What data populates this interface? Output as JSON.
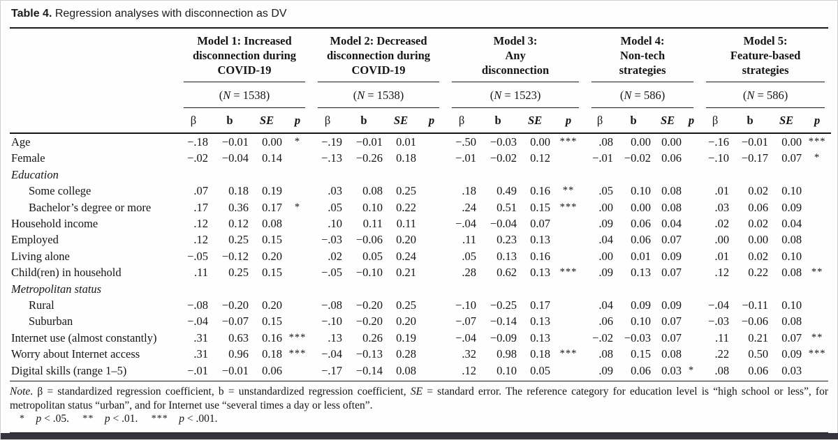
{
  "title": {
    "label": "Table 4.",
    "caption": " Regression analyses with disconnection as DV"
  },
  "col_headers": [
    "β",
    "b",
    "SE",
    "p"
  ],
  "models": [
    {
      "title": "Model 1: Increased\ndisconnection during\nCOVID-19",
      "n": [
        {
          "t": "(",
          "i": false
        },
        {
          "t": "N",
          "i": true
        },
        {
          "t": " = 1538)",
          "i": false
        }
      ]
    },
    {
      "title": "Model 2: Decreased\ndisconnection during\nCOVID-19",
      "n": [
        {
          "t": "(",
          "i": false
        },
        {
          "t": "N",
          "i": true
        },
        {
          "t": " = 1538)",
          "i": false
        }
      ]
    },
    {
      "title": "Model 3:\nAny\ndisconnection",
      "n": [
        {
          "t": "(",
          "i": false
        },
        {
          "t": "N",
          "i": true
        },
        {
          "t": " = 1523)",
          "i": false
        }
      ]
    },
    {
      "title": "Model 4:\nNon-tech\nstrategies",
      "n": [
        {
          "t": "(",
          "i": false
        },
        {
          "t": "N",
          "i": true
        },
        {
          "t": " = 586)",
          "i": false
        }
      ]
    },
    {
      "title": "Model 5:\nFeature-based\nstrategies",
      "n": [
        {
          "t": "(",
          "i": false
        },
        {
          "t": "N",
          "i": true
        },
        {
          "t": " = 586)",
          "i": false
        }
      ]
    }
  ],
  "rows": [
    {
      "label": "Age",
      "indent": false,
      "category": false,
      "cells": [
        [
          "−.18",
          "−0.01",
          "0.00",
          "*"
        ],
        [
          "−.19",
          "−0.01",
          "0.01",
          ""
        ],
        [
          "−.50",
          "−0.03",
          "0.00",
          "***"
        ],
        [
          ".08",
          "0.00",
          "0.00",
          ""
        ],
        [
          "−.16",
          "−0.01",
          "0.00",
          "***"
        ]
      ]
    },
    {
      "label": "Female",
      "indent": false,
      "category": false,
      "cells": [
        [
          "−.02",
          "−0.04",
          "0.14",
          ""
        ],
        [
          "−.13",
          "−0.26",
          "0.18",
          ""
        ],
        [
          "−.01",
          "−0.02",
          "0.12",
          ""
        ],
        [
          "−.01",
          "−0.02",
          "0.06",
          ""
        ],
        [
          "−.10",
          "−0.17",
          "0.07",
          "*"
        ]
      ]
    },
    {
      "label": "Education",
      "indent": false,
      "category": true,
      "cells": null
    },
    {
      "label": "Some college",
      "indent": true,
      "category": false,
      "cells": [
        [
          ".07",
          "0.18",
          "0.19",
          ""
        ],
        [
          ".03",
          "0.08",
          "0.25",
          ""
        ],
        [
          ".18",
          "0.49",
          "0.16",
          "**"
        ],
        [
          ".05",
          "0.10",
          "0.08",
          ""
        ],
        [
          ".01",
          "0.02",
          "0.10",
          ""
        ]
      ]
    },
    {
      "label": "Bachelor’s degree or more",
      "indent": true,
      "category": false,
      "cells": [
        [
          ".17",
          "0.36",
          "0.17",
          "*"
        ],
        [
          ".05",
          "0.10",
          "0.22",
          ""
        ],
        [
          ".24",
          "0.51",
          "0.15",
          "***"
        ],
        [
          ".00",
          "0.00",
          "0.08",
          ""
        ],
        [
          ".03",
          "0.06",
          "0.09",
          ""
        ]
      ]
    },
    {
      "label": "Household income",
      "indent": false,
      "category": false,
      "cells": [
        [
          ".12",
          "0.12",
          "0.08",
          ""
        ],
        [
          ".10",
          "0.11",
          "0.11",
          ""
        ],
        [
          "−.04",
          "−0.04",
          "0.07",
          ""
        ],
        [
          ".09",
          "0.06",
          "0.04",
          ""
        ],
        [
          ".02",
          "0.02",
          "0.04",
          ""
        ]
      ]
    },
    {
      "label": "Employed",
      "indent": false,
      "category": false,
      "cells": [
        [
          ".12",
          "0.25",
          "0.15",
          ""
        ],
        [
          "−.03",
          "−0.06",
          "0.20",
          ""
        ],
        [
          ".11",
          "0.23",
          "0.13",
          ""
        ],
        [
          ".04",
          "0.06",
          "0.07",
          ""
        ],
        [
          ".00",
          "0.00",
          "0.08",
          ""
        ]
      ]
    },
    {
      "label": "Living alone",
      "indent": false,
      "category": false,
      "cells": [
        [
          "−.05",
          "−0.12",
          "0.20",
          ""
        ],
        [
          ".02",
          "0.05",
          "0.24",
          ""
        ],
        [
          ".05",
          "0.13",
          "0.16",
          ""
        ],
        [
          ".00",
          "0.01",
          "0.09",
          ""
        ],
        [
          ".01",
          "0.02",
          "0.10",
          ""
        ]
      ]
    },
    {
      "label": "Child(ren) in household",
      "indent": false,
      "category": false,
      "cells": [
        [
          ".11",
          "0.25",
          "0.15",
          ""
        ],
        [
          "−.05",
          "−0.10",
          "0.21",
          ""
        ],
        [
          ".28",
          "0.62",
          "0.13",
          "***"
        ],
        [
          ".09",
          "0.13",
          "0.07",
          ""
        ],
        [
          ".12",
          "0.22",
          "0.08",
          "**"
        ]
      ]
    },
    {
      "label": "Metropolitan status",
      "indent": false,
      "category": true,
      "cells": null
    },
    {
      "label": "Rural",
      "indent": true,
      "category": false,
      "cells": [
        [
          "−.08",
          "−0.20",
          "0.20",
          ""
        ],
        [
          "−.08",
          "−0.20",
          "0.25",
          ""
        ],
        [
          "−.10",
          "−0.25",
          "0.17",
          ""
        ],
        [
          ".04",
          "0.09",
          "0.09",
          ""
        ],
        [
          "−.04",
          "−0.11",
          "0.10",
          ""
        ]
      ]
    },
    {
      "label": "Suburban",
      "indent": true,
      "category": false,
      "cells": [
        [
          "−.04",
          "−0.07",
          "0.15",
          ""
        ],
        [
          "−.10",
          "−0.20",
          "0.20",
          ""
        ],
        [
          "−.07",
          "−0.14",
          "0.13",
          ""
        ],
        [
          ".06",
          "0.10",
          "0.07",
          ""
        ],
        [
          "−.03",
          "−0.06",
          "0.08",
          ""
        ]
      ]
    },
    {
      "label": "Internet use (almost constantly)",
      "indent": false,
      "category": false,
      "cells": [
        [
          ".31",
          "0.63",
          "0.16",
          "***"
        ],
        [
          ".13",
          "0.26",
          "0.19",
          ""
        ],
        [
          "−.04",
          "−0.09",
          "0.13",
          ""
        ],
        [
          "−.02",
          "−0.03",
          "0.07",
          ""
        ],
        [
          ".11",
          "0.21",
          "0.07",
          "**"
        ]
      ]
    },
    {
      "label": "Worry about Internet access",
      "indent": false,
      "category": false,
      "cells": [
        [
          ".31",
          "0.96",
          "0.18",
          "***"
        ],
        [
          "−.04",
          "−0.13",
          "0.28",
          ""
        ],
        [
          ".32",
          "0.98",
          "0.18",
          "***"
        ],
        [
          ".08",
          "0.15",
          "0.08",
          ""
        ],
        [
          ".22",
          "0.50",
          "0.09",
          "***"
        ]
      ]
    },
    {
      "label": "Digital skills (range 1–5)",
      "indent": false,
      "category": false,
      "cells": [
        [
          "−.01",
          "−0.01",
          "0.06",
          ""
        ],
        [
          "−.17",
          "−0.14",
          "0.08",
          ""
        ],
        [
          ".12",
          "0.10",
          "0.05",
          ""
        ],
        [
          ".09",
          "0.06",
          "0.03",
          "*"
        ],
        [
          ".08",
          "0.06",
          "0.03",
          ""
        ]
      ]
    }
  ],
  "note_segments": [
    {
      "t": "Note",
      "i": true
    },
    {
      "t": ". β = standardized regression coefficient, b = unstandardized regression coefficient, ",
      "i": false
    },
    {
      "t": "SE",
      "i": true
    },
    {
      "t": " = standard error. The reference category for education level is “high school or less”, for metropolitan status “urban”, and for Internet use “several times a day or less often”.",
      "i": false
    }
  ],
  "sig_segments": [
    {
      "t": "*",
      "i": false,
      "stars": true
    },
    {
      "t": "    ",
      "i": false
    },
    {
      "t": "p",
      "i": true
    },
    {
      "t": " < .05.     ",
      "i": false
    },
    {
      "t": "**",
      "i": false,
      "stars": true
    },
    {
      "t": "    ",
      "i": false
    },
    {
      "t": "p",
      "i": true
    },
    {
      "t": " < .01.     ",
      "i": false
    },
    {
      "t": "***",
      "i": false,
      "stars": true
    },
    {
      "t": "    ",
      "i": false
    },
    {
      "t": "p",
      "i": true
    },
    {
      "t": " < .001.",
      "i": false
    }
  ]
}
